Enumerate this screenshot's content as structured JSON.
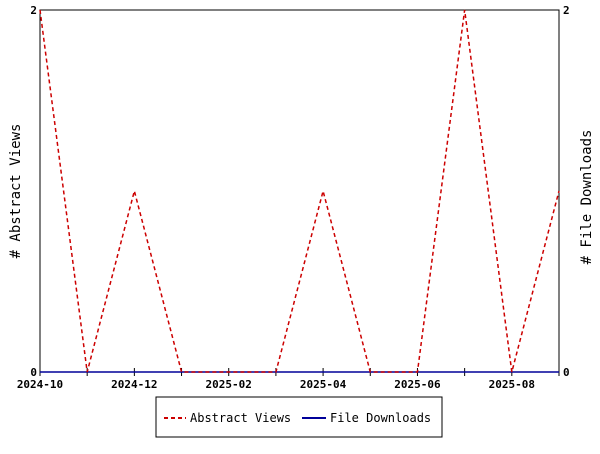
{
  "chart_data": {
    "type": "line",
    "title": "",
    "x": [
      "2024-10",
      "2024-11",
      "2024-12",
      "2025-01",
      "2025-02",
      "2025-03",
      "2025-04",
      "2025-05",
      "2025-06",
      "2025-07",
      "2025-08",
      "2025-09"
    ],
    "x_tick_labels": [
      "2024-10",
      "2024-12",
      "2025-02",
      "2025-04",
      "2025-06",
      "2025-08"
    ],
    "ylabel_left": "# Abstract Views",
    "ylabel_right": "# File Downloads",
    "ylim_left": [
      0,
      2
    ],
    "ylim_right": [
      0,
      2
    ],
    "y_tick_labels_left": [
      "0",
      "2"
    ],
    "y_tick_labels_right": [
      "0",
      "2"
    ],
    "grid": false,
    "legend_position": "bottom",
    "series": [
      {
        "name": "Abstract Views",
        "axis": "left",
        "color": "#cc0000",
        "style": "dashed",
        "values": [
          2,
          0,
          1,
          0,
          0,
          0,
          1,
          0,
          0,
          2,
          0,
          1
        ]
      },
      {
        "name": "File Downloads",
        "axis": "right",
        "color": "#000099",
        "style": "solid",
        "values": [
          0,
          0,
          0,
          0,
          0,
          0,
          0,
          0,
          0,
          0,
          0,
          0
        ]
      }
    ]
  }
}
